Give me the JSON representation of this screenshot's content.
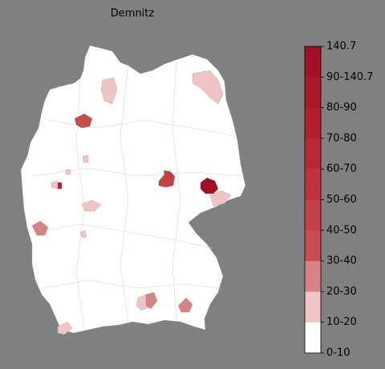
{
  "title": "Demnitz",
  "colorbar": {
    "labels": [
      "140.7",
      "90-140.7",
      "80-90",
      "70-80",
      "60-70",
      "50-60",
      "40-50",
      "30-40",
      "20-30",
      "10-20",
      "0-10"
    ],
    "colors": [
      "#a50f25",
      "#ad1529",
      "#b51d2d",
      "#bb2832",
      "#c03439",
      "#c44143",
      "#c84e4e",
      "#d98282",
      "#f0c4c4",
      "#ffffff"
    ]
  }
}
